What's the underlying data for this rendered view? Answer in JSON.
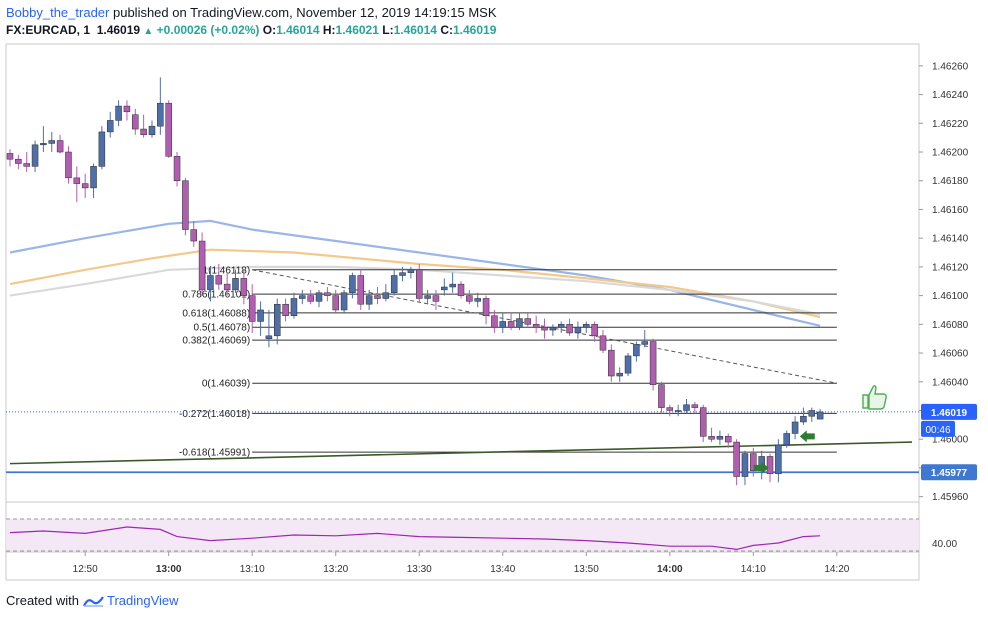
{
  "header": {
    "user": "Bobby_the_trader",
    "published_text": "published on TradingView.com, November 12, 2019 14:19:15 MSK",
    "symbol": "FX:EURCAD, 1",
    "last": "1.46019",
    "change": "+0.00026 (+0.02%)",
    "o_label": "O:",
    "o_val": "1.46014",
    "h_label": "H:",
    "h_val": "1.46021",
    "l_label": "L:",
    "l_val": "1.46014",
    "c_label": "C:",
    "c_val": "1.46019"
  },
  "footer": {
    "created_with": "Created with",
    "brand": "TradingView"
  },
  "colors": {
    "bull": "#4f6fa8",
    "bear": "#b05fb0",
    "ma_fast": "#9ab6e6",
    "ma_mid": "#f2c98a",
    "ma_slow": "#d9d9d9",
    "trend": "#3b5a2a",
    "support": "#3f78d1",
    "rsi": "#9c27b0",
    "price_tag": "#2962ff",
    "thumb": "#4caf50",
    "arrow": "#2e7d32"
  },
  "chart_data": {
    "type": "candlestick",
    "y_axis": {
      "ticks": [
        "1.46260",
        "1.46240",
        "1.46220",
        "1.46200",
        "1.46180",
        "1.46160",
        "1.46140",
        "1.46120",
        "1.46100",
        "1.46080",
        "1.46060",
        "1.46040",
        "1.46020",
        "1.46000",
        "1.45980",
        "1.45960"
      ],
      "range": [
        1.4595,
        1.4627
      ]
    },
    "x_axis": {
      "ticks": [
        "12:50",
        "13:00",
        "13:10",
        "13:20",
        "13:30",
        "13:40",
        "13:50",
        "14:00",
        "14:10",
        "14:20"
      ],
      "range": [
        "12:41",
        "14:29"
      ]
    },
    "last_price_label": "1.46019",
    "countdown_label": "00:46",
    "support_label": "1.45977",
    "support_price": 1.45977,
    "rsi_label": "40.00",
    "candles": [
      {
        "t": "12:41",
        "o": 1.46199,
        "h": 1.46202,
        "l": 1.4619,
        "c": 1.46195
      },
      {
        "t": "12:42",
        "o": 1.46195,
        "h": 1.46198,
        "l": 1.46188,
        "c": 1.46192
      },
      {
        "t": "12:43",
        "o": 1.46192,
        "h": 1.462,
        "l": 1.46186,
        "c": 1.4619
      },
      {
        "t": "12:44",
        "o": 1.4619,
        "h": 1.46208,
        "l": 1.46186,
        "c": 1.46205
      },
      {
        "t": "12:45",
        "o": 1.46205,
        "h": 1.46218,
        "l": 1.462,
        "c": 1.46206
      },
      {
        "t": "12:46",
        "o": 1.46206,
        "h": 1.46214,
        "l": 1.462,
        "c": 1.46208
      },
      {
        "t": "12:47",
        "o": 1.46208,
        "h": 1.46212,
        "l": 1.46199,
        "c": 1.462
      },
      {
        "t": "12:48",
        "o": 1.462,
        "h": 1.46204,
        "l": 1.46178,
        "c": 1.46182
      },
      {
        "t": "12:49",
        "o": 1.46182,
        "h": 1.4619,
        "l": 1.46165,
        "c": 1.46178
      },
      {
        "t": "12:50",
        "o": 1.46178,
        "h": 1.46185,
        "l": 1.46168,
        "c": 1.46175
      },
      {
        "t": "12:51",
        "o": 1.46175,
        "h": 1.46192,
        "l": 1.46168,
        "c": 1.4619
      },
      {
        "t": "12:52",
        "o": 1.4619,
        "h": 1.46218,
        "l": 1.46188,
        "c": 1.46214
      },
      {
        "t": "12:53",
        "o": 1.46214,
        "h": 1.46228,
        "l": 1.4621,
        "c": 1.46222
      },
      {
        "t": "12:54",
        "o": 1.46222,
        "h": 1.46236,
        "l": 1.46218,
        "c": 1.46232
      },
      {
        "t": "12:55",
        "o": 1.46232,
        "h": 1.46236,
        "l": 1.46222,
        "c": 1.46228
      },
      {
        "t": "12:56",
        "o": 1.46226,
        "h": 1.4623,
        "l": 1.46212,
        "c": 1.46216
      },
      {
        "t": "12:57",
        "o": 1.46216,
        "h": 1.46226,
        "l": 1.4621,
        "c": 1.46212
      },
      {
        "t": "12:58",
        "o": 1.46212,
        "h": 1.46222,
        "l": 1.4621,
        "c": 1.46218
      },
      {
        "t": "12:59",
        "o": 1.46218,
        "h": 1.46252,
        "l": 1.46212,
        "c": 1.46234
      },
      {
        "t": "13:00",
        "o": 1.46234,
        "h": 1.46236,
        "l": 1.46196,
        "c": 1.46197
      },
      {
        "t": "13:01",
        "o": 1.46197,
        "h": 1.462,
        "l": 1.46176,
        "c": 1.4618
      },
      {
        "t": "13:02",
        "o": 1.4618,
        "h": 1.46182,
        "l": 1.46142,
        "c": 1.46146
      },
      {
        "t": "13:03",
        "o": 1.46146,
        "h": 1.46152,
        "l": 1.46134,
        "c": 1.46138
      },
      {
        "t": "13:04",
        "o": 1.46138,
        "h": 1.46144,
        "l": 1.461,
        "c": 1.46104
      },
      {
        "t": "13:05",
        "o": 1.46104,
        "h": 1.4612,
        "l": 1.46096,
        "c": 1.46114
      },
      {
        "t": "13:06",
        "o": 1.46114,
        "h": 1.46122,
        "l": 1.46104,
        "c": 1.46108
      },
      {
        "t": "13:07",
        "o": 1.46108,
        "h": 1.46116,
        "l": 1.461,
        "c": 1.46104
      },
      {
        "t": "13:08",
        "o": 1.46104,
        "h": 1.46118,
        "l": 1.46102,
        "c": 1.46112
      },
      {
        "t": "13:09",
        "o": 1.46112,
        "h": 1.46118,
        "l": 1.46094,
        "c": 1.461
      },
      {
        "t": "13:10",
        "o": 1.461,
        "h": 1.46108,
        "l": 1.46074,
        "c": 1.46082
      },
      {
        "t": "13:11",
        "o": 1.46082,
        "h": 1.46096,
        "l": 1.46072,
        "c": 1.4609
      },
      {
        "t": "13:12",
        "o": 1.4607,
        "h": 1.4609,
        "l": 1.46064,
        "c": 1.46072
      },
      {
        "t": "13:13",
        "o": 1.46072,
        "h": 1.46098,
        "l": 1.46066,
        "c": 1.46094
      },
      {
        "t": "13:14",
        "o": 1.46094,
        "h": 1.46098,
        "l": 1.46082,
        "c": 1.46086
      },
      {
        "t": "13:15",
        "o": 1.46086,
        "h": 1.46102,
        "l": 1.46084,
        "c": 1.46098
      },
      {
        "t": "13:16",
        "o": 1.46098,
        "h": 1.46104,
        "l": 1.46094,
        "c": 1.461
      },
      {
        "t": "13:17",
        "o": 1.461,
        "h": 1.46104,
        "l": 1.46094,
        "c": 1.46096
      },
      {
        "t": "13:18",
        "o": 1.46096,
        "h": 1.46104,
        "l": 1.46092,
        "c": 1.46102
      },
      {
        "t": "13:19",
        "o": 1.46102,
        "h": 1.46106,
        "l": 1.46096,
        "c": 1.461
      },
      {
        "t": "13:20",
        "o": 1.461,
        "h": 1.46104,
        "l": 1.46088,
        "c": 1.4609
      },
      {
        "t": "13:21",
        "o": 1.4609,
        "h": 1.46104,
        "l": 1.46088,
        "c": 1.46102
      },
      {
        "t": "13:22",
        "o": 1.46102,
        "h": 1.46116,
        "l": 1.46098,
        "c": 1.46114
      },
      {
        "t": "13:23",
        "o": 1.46114,
        "h": 1.46118,
        "l": 1.4609,
        "c": 1.46094
      },
      {
        "t": "13:24",
        "o": 1.46094,
        "h": 1.46104,
        "l": 1.4609,
        "c": 1.461
      },
      {
        "t": "13:25",
        "o": 1.461,
        "h": 1.46106,
        "l": 1.46094,
        "c": 1.46098
      },
      {
        "t": "13:26",
        "o": 1.46098,
        "h": 1.46108,
        "l": 1.46096,
        "c": 1.46102
      },
      {
        "t": "13:27",
        "o": 1.46102,
        "h": 1.46118,
        "l": 1.461,
        "c": 1.46114
      },
      {
        "t": "13:28",
        "o": 1.46114,
        "h": 1.4612,
        "l": 1.4611,
        "c": 1.46116
      },
      {
        "t": "13:29",
        "o": 1.46116,
        "h": 1.4612,
        "l": 1.46112,
        "c": 1.46118
      },
      {
        "t": "13:30",
        "o": 1.46118,
        "h": 1.46122,
        "l": 1.46096,
        "c": 1.46098
      },
      {
        "t": "13:31",
        "o": 1.46098,
        "h": 1.46104,
        "l": 1.46094,
        "c": 1.461
      },
      {
        "t": "13:32",
        "o": 1.461,
        "h": 1.46104,
        "l": 1.4609,
        "c": 1.46096
      },
      {
        "t": "13:33",
        "o": 1.46104,
        "h": 1.46112,
        "l": 1.461,
        "c": 1.46106
      },
      {
        "t": "13:34",
        "o": 1.46106,
        "h": 1.46116,
        "l": 1.46102,
        "c": 1.46108
      },
      {
        "t": "13:35",
        "o": 1.46108,
        "h": 1.4611,
        "l": 1.46098,
        "c": 1.461
      },
      {
        "t": "13:36",
        "o": 1.461,
        "h": 1.46104,
        "l": 1.46094,
        "c": 1.46096
      },
      {
        "t": "13:37",
        "o": 1.46096,
        "h": 1.46102,
        "l": 1.46092,
        "c": 1.46098
      },
      {
        "t": "13:38",
        "o": 1.46098,
        "h": 1.461,
        "l": 1.4608,
        "c": 1.46086
      },
      {
        "t": "13:39",
        "o": 1.46086,
        "h": 1.4609,
        "l": 1.46074,
        "c": 1.46078
      },
      {
        "t": "13:40",
        "o": 1.46078,
        "h": 1.46088,
        "l": 1.46074,
        "c": 1.46082
      },
      {
        "t": "13:41",
        "o": 1.46082,
        "h": 1.46088,
        "l": 1.46076,
        "c": 1.46078
      },
      {
        "t": "13:42",
        "o": 1.46078,
        "h": 1.46088,
        "l": 1.46076,
        "c": 1.46084
      },
      {
        "t": "13:43",
        "o": 1.46084,
        "h": 1.46088,
        "l": 1.46078,
        "c": 1.4608
      },
      {
        "t": "13:44",
        "o": 1.4608,
        "h": 1.46086,
        "l": 1.46074,
        "c": 1.46078
      },
      {
        "t": "13:45",
        "o": 1.46078,
        "h": 1.46084,
        "l": 1.4607,
        "c": 1.46076
      },
      {
        "t": "13:46",
        "o": 1.46076,
        "h": 1.4608,
        "l": 1.46072,
        "c": 1.46078
      },
      {
        "t": "13:47",
        "o": 1.46078,
        "h": 1.46082,
        "l": 1.46074,
        "c": 1.4608
      },
      {
        "t": "13:48",
        "o": 1.4608,
        "h": 1.46084,
        "l": 1.46072,
        "c": 1.46074
      },
      {
        "t": "13:49",
        "o": 1.46074,
        "h": 1.46082,
        "l": 1.4607,
        "c": 1.46078
      },
      {
        "t": "13:50",
        "o": 1.46078,
        "h": 1.46082,
        "l": 1.46074,
        "c": 1.4608
      },
      {
        "t": "13:51",
        "o": 1.4608,
        "h": 1.46082,
        "l": 1.46068,
        "c": 1.46072
      },
      {
        "t": "13:52",
        "o": 1.46072,
        "h": 1.46076,
        "l": 1.4606,
        "c": 1.46062
      },
      {
        "t": "13:53",
        "o": 1.46062,
        "h": 1.46066,
        "l": 1.4604,
        "c": 1.46044
      },
      {
        "t": "13:54",
        "o": 1.46044,
        "h": 1.4605,
        "l": 1.4604,
        "c": 1.46046
      },
      {
        "t": "13:55",
        "o": 1.46046,
        "h": 1.4606,
        "l": 1.46044,
        "c": 1.46058
      },
      {
        "t": "13:56",
        "o": 1.46058,
        "h": 1.46068,
        "l": 1.46054,
        "c": 1.46066
      },
      {
        "t": "13:57",
        "o": 1.46066,
        "h": 1.46076,
        "l": 1.46064,
        "c": 1.46068
      },
      {
        "t": "13:58",
        "o": 1.46068,
        "h": 1.4607,
        "l": 1.46034,
        "c": 1.46038
      },
      {
        "t": "13:59",
        "o": 1.46038,
        "h": 1.4604,
        "l": 1.46018,
        "c": 1.46022
      },
      {
        "t": "14:00",
        "o": 1.46022,
        "h": 1.46024,
        "l": 1.46016,
        "c": 1.4602
      },
      {
        "t": "14:01",
        "o": 1.4602,
        "h": 1.46024,
        "l": 1.46016,
        "c": 1.4602
      },
      {
        "t": "14:02",
        "o": 1.4602,
        "h": 1.46028,
        "l": 1.46018,
        "c": 1.46024
      },
      {
        "t": "14:03",
        "o": 1.46024,
        "h": 1.46026,
        "l": 1.46018,
        "c": 1.46022
      },
      {
        "t": "14:04",
        "o": 1.46022,
        "h": 1.46024,
        "l": 1.45998,
        "c": 1.46002
      },
      {
        "t": "14:05",
        "o": 1.46002,
        "h": 1.46008,
        "l": 1.45998,
        "c": 1.46
      },
      {
        "t": "14:06",
        "o": 1.46,
        "h": 1.46006,
        "l": 1.45996,
        "c": 1.46002
      },
      {
        "t": "14:07",
        "o": 1.46002,
        "h": 1.46004,
        "l": 1.45994,
        "c": 1.45998
      },
      {
        "t": "14:08",
        "o": 1.45998,
        "h": 1.46,
        "l": 1.45968,
        "c": 1.45974
      },
      {
        "t": "14:09",
        "o": 1.45974,
        "h": 1.45992,
        "l": 1.45968,
        "c": 1.4599
      },
      {
        "t": "14:10",
        "o": 1.4599,
        "h": 1.45994,
        "l": 1.45974,
        "c": 1.45978
      },
      {
        "t": "14:11",
        "o": 1.45978,
        "h": 1.45992,
        "l": 1.45972,
        "c": 1.45988
      },
      {
        "t": "14:12",
        "o": 1.45988,
        "h": 1.4599,
        "l": 1.4597,
        "c": 1.45976
      },
      {
        "t": "14:13",
        "o": 1.45976,
        "h": 1.46,
        "l": 1.4597,
        "c": 1.45996
      },
      {
        "t": "14:14",
        "o": 1.45996,
        "h": 1.46006,
        "l": 1.45994,
        "c": 1.46004
      },
      {
        "t": "14:15",
        "o": 1.46004,
        "h": 1.46016,
        "l": 1.46,
        "c": 1.46012
      },
      {
        "t": "14:16",
        "o": 1.46012,
        "h": 1.46022,
        "l": 1.4601,
        "c": 1.46016
      },
      {
        "t": "14:17",
        "o": 1.46016,
        "h": 1.46022,
        "l": 1.46012,
        "c": 1.4602
      },
      {
        "t": "14:18",
        "o": 1.46014,
        "h": 1.46021,
        "l": 1.46014,
        "c": 1.46019
      }
    ],
    "moving_averages": [
      {
        "color_key": "ma_fast",
        "points": [
          [
            "12:41",
            1.4613
          ],
          [
            "12:50",
            1.4614
          ],
          [
            "13:00",
            1.4615
          ],
          [
            "13:05",
            1.46152
          ],
          [
            "13:10",
            1.46146
          ],
          [
            "13:20",
            1.46138
          ],
          [
            "13:30",
            1.4613
          ],
          [
            "13:40",
            1.46122
          ],
          [
            "13:50",
            1.46114
          ],
          [
            "14:00",
            1.46104
          ],
          [
            "14:10",
            1.4609
          ],
          [
            "14:18",
            1.46079
          ]
        ]
      },
      {
        "color_key": "ma_mid",
        "points": [
          [
            "12:41",
            1.46108
          ],
          [
            "12:50",
            1.46118
          ],
          [
            "12:58",
            1.46126
          ],
          [
            "13:05",
            1.46132
          ],
          [
            "13:15",
            1.4613
          ],
          [
            "13:30",
            1.46122
          ],
          [
            "13:40",
            1.46118
          ],
          [
            "13:50",
            1.46112
          ],
          [
            "14:00",
            1.46106
          ],
          [
            "14:10",
            1.46096
          ],
          [
            "14:18",
            1.46085
          ]
        ]
      },
      {
        "color_key": "ma_slow",
        "points": [
          [
            "12:41",
            1.461
          ],
          [
            "12:50",
            1.46108
          ],
          [
            "13:00",
            1.46118
          ],
          [
            "13:10",
            1.4612
          ],
          [
            "13:20",
            1.4612
          ],
          [
            "13:30",
            1.46118
          ],
          [
            "13:40",
            1.46114
          ],
          [
            "13:50",
            1.4611
          ],
          [
            "14:00",
            1.46104
          ],
          [
            "14:10",
            1.46096
          ],
          [
            "14:18",
            1.46087
          ]
        ]
      }
    ],
    "fibonacci": [
      {
        "label": "1(1.46118)",
        "price": 1.46118
      },
      {
        "label": "0.786(1.46101)",
        "price": 1.46101
      },
      {
        "label": "0.618(1.46088)",
        "price": 1.46088
      },
      {
        "label": "0.5(1.46078)",
        "price": 1.46078
      },
      {
        "label": "0.382(1.46069)",
        "price": 1.46069
      },
      {
        "label": "0(1.46039)",
        "price": 1.46039
      },
      {
        "label": "-0.272(1.46018)",
        "price": 1.46018
      },
      {
        "label": "-0.618(1.45991)",
        "price": 1.45991
      }
    ],
    "fib_range": {
      "start": "13:10",
      "end": "14:20"
    },
    "dashed_trend": [
      [
        "13:10",
        1.46118
      ],
      [
        "14:20",
        1.46039
      ]
    ],
    "solid_trend": [
      [
        "12:41",
        1.45983
      ],
      [
        "14:29",
        1.45998
      ]
    ],
    "rsi": [
      [
        "12:41",
        53
      ],
      [
        "12:45",
        55
      ],
      [
        "12:50",
        52
      ],
      [
        "12:55",
        60
      ],
      [
        "12:59",
        57
      ],
      [
        "13:01",
        48
      ],
      [
        "13:05",
        43
      ],
      [
        "13:10",
        46
      ],
      [
        "13:15",
        50
      ],
      [
        "13:20",
        49
      ],
      [
        "13:25",
        52
      ],
      [
        "13:30",
        48
      ],
      [
        "13:35",
        47
      ],
      [
        "13:40",
        46
      ],
      [
        "13:45",
        45
      ],
      [
        "13:50",
        43
      ],
      [
        "13:55",
        40
      ],
      [
        "14:00",
        36
      ],
      [
        "14:05",
        36
      ],
      [
        "14:08",
        32
      ],
      [
        "14:10",
        37
      ],
      [
        "14:13",
        40
      ],
      [
        "14:16",
        48
      ],
      [
        "14:18",
        49
      ]
    ]
  }
}
